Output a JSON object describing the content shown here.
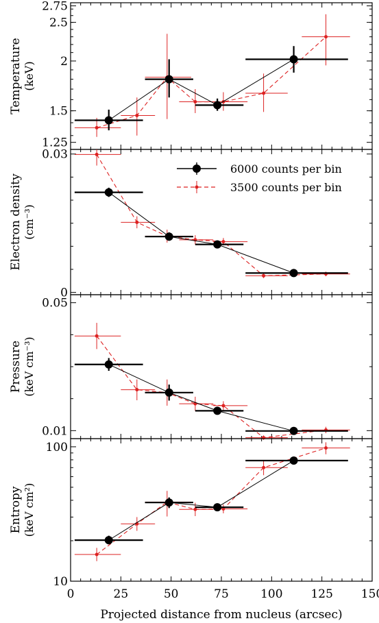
{
  "figure": {
    "xlabel": "Projected distance from nucleus (arcsec)",
    "xticks": [
      0,
      25,
      50,
      75,
      100,
      125,
      150
    ],
    "xlim": [
      0,
      150
    ]
  },
  "chart_data": [
    {
      "type": "scatter",
      "panel": "temperature",
      "ylabel": "Temperature",
      "yunit": "(keV)",
      "yscale": "log",
      "ylim": [
        1.2,
        2.8
      ],
      "yticks": [
        1.25,
        1.5,
        2,
        2.5,
        2.75
      ],
      "yticklabels": [
        "1.25",
        "1.5",
        "2",
        "2.5",
        "2.75"
      ],
      "series": [
        {
          "name": "6000 counts per bin",
          "color": "#000000",
          "marker": "circle",
          "points": [
            {
              "x": 19,
              "y": 1.42,
              "xlo": 2,
              "xhi": 36,
              "ylo": 1.34,
              "yhi": 1.51
            },
            {
              "x": 49,
              "y": 1.8,
              "xlo": 37,
              "xhi": 61,
              "ylo": 1.62,
              "yhi": 2.02
            },
            {
              "x": 73,
              "y": 1.55,
              "xlo": 62,
              "xhi": 86,
              "ylo": 1.5,
              "yhi": 1.61
            },
            {
              "x": 111,
              "y": 2.02,
              "xlo": 87,
              "xhi": 138,
              "ylo": 1.87,
              "yhi": 2.18
            }
          ]
        },
        {
          "name": "3500 counts per bin",
          "color": "#dd2222",
          "marker": "dot",
          "points": [
            {
              "x": 13,
              "y": 1.36,
              "xlo": 2,
              "xhi": 25,
              "ylo": 1.29,
              "yhi": 1.44
            },
            {
              "x": 33,
              "y": 1.46,
              "xlo": 25,
              "xhi": 42,
              "ylo": 1.3,
              "yhi": 1.62
            },
            {
              "x": 48,
              "y": 1.82,
              "xlo": 37,
              "xhi": 60,
              "ylo": 1.43,
              "yhi": 2.34
            },
            {
              "x": 62,
              "y": 1.58,
              "xlo": 54,
              "xhi": 71,
              "ylo": 1.48,
              "yhi": 1.7
            },
            {
              "x": 76,
              "y": 1.58,
              "xlo": 71,
              "xhi": 88,
              "ylo": 1.5,
              "yhi": 1.67
            },
            {
              "x": 96,
              "y": 1.66,
              "xlo": 87,
              "xhi": 108,
              "ylo": 1.49,
              "yhi": 1.86
            },
            {
              "x": 127,
              "y": 2.3,
              "xlo": 115,
              "xhi": 139,
              "ylo": 1.95,
              "yhi": 2.62
            }
          ]
        }
      ]
    },
    {
      "type": "scatter",
      "panel": "electron-density",
      "ylabel": "Electron density",
      "yunit": "(cm⁻³)",
      "yscale": "linear",
      "ylim": [
        -0.0005,
        0.031
      ],
      "yticks": [
        0,
        0.03
      ],
      "yticklabels": [
        "0",
        "0.03"
      ],
      "legend": {
        "position": "top-right",
        "entries": [
          "6000 counts per bin",
          "3500 counts per bin"
        ]
      },
      "series": [
        {
          "name": "6000 counts per bin",
          "color": "#000000",
          "marker": "circle",
          "points": [
            {
              "x": 19,
              "y": 0.0217,
              "xlo": 2,
              "xhi": 36,
              "ylo": 0.0207,
              "yhi": 0.0227
            },
            {
              "x": 49,
              "y": 0.0121,
              "xlo": 37,
              "xhi": 61,
              "ylo": 0.0112,
              "yhi": 0.013
            },
            {
              "x": 73,
              "y": 0.0104,
              "xlo": 62,
              "xhi": 86,
              "ylo": 0.0098,
              "yhi": 0.011
            },
            {
              "x": 111,
              "y": 0.0042,
              "xlo": 87,
              "xhi": 138,
              "ylo": 0.0038,
              "yhi": 0.0046
            }
          ]
        },
        {
          "name": "3500 counts per bin",
          "color": "#dd2222",
          "marker": "dot",
          "points": [
            {
              "x": 13,
              "y": 0.0299,
              "xlo": 2,
              "xhi": 25,
              "ylo": 0.0275,
              "yhi": 0.031
            },
            {
              "x": 33,
              "y": 0.0152,
              "xlo": 25,
              "xhi": 42,
              "ylo": 0.0139,
              "yhi": 0.0165
            },
            {
              "x": 48,
              "y": 0.0122,
              "xlo": 37,
              "xhi": 60,
              "ylo": 0.0108,
              "yhi": 0.0136
            },
            {
              "x": 62,
              "y": 0.0114,
              "xlo": 54,
              "xhi": 71,
              "ylo": 0.0104,
              "yhi": 0.0124
            },
            {
              "x": 76,
              "y": 0.011,
              "xlo": 71,
              "xhi": 88,
              "ylo": 0.0102,
              "yhi": 0.0118
            },
            {
              "x": 96,
              "y": 0.0036,
              "xlo": 87,
              "xhi": 108,
              "ylo": 0.0031,
              "yhi": 0.0041
            },
            {
              "x": 127,
              "y": 0.004,
              "xlo": 115,
              "xhi": 139,
              "ylo": 0.0035,
              "yhi": 0.0045
            }
          ]
        }
      ]
    },
    {
      "type": "scatter",
      "panel": "pressure",
      "ylabel": "Pressure",
      "yunit": "(keV cm⁻³)",
      "yscale": "linear",
      "ylim": [
        0.0075,
        0.0525
      ],
      "yticks": [
        0.01,
        0.05
      ],
      "yticklabels": [
        "0.01",
        "0.05"
      ],
      "series": [
        {
          "name": "6000 counts per bin",
          "color": "#000000",
          "marker": "circle",
          "points": [
            {
              "x": 19,
              "y": 0.0307,
              "xlo": 2,
              "xhi": 36,
              "ylo": 0.0287,
              "yhi": 0.0327
            },
            {
              "x": 49,
              "y": 0.0219,
              "xlo": 37,
              "xhi": 61,
              "ylo": 0.0194,
              "yhi": 0.0244
            },
            {
              "x": 73,
              "y": 0.0162,
              "xlo": 62,
              "xhi": 86,
              "ylo": 0.0152,
              "yhi": 0.0172
            },
            {
              "x": 111,
              "y": 0.0099,
              "xlo": 87,
              "xhi": 138,
              "ylo": 0.0091,
              "yhi": 0.0107
            }
          ]
        },
        {
          "name": "3500 counts per bin",
          "color": "#dd2222",
          "marker": "dot",
          "points": [
            {
              "x": 13,
              "y": 0.0396,
              "xlo": 2,
              "xhi": 25,
              "ylo": 0.0355,
              "yhi": 0.0437
            },
            {
              "x": 33,
              "y": 0.0228,
              "xlo": 25,
              "xhi": 42,
              "ylo": 0.0195,
              "yhi": 0.026
            },
            {
              "x": 48,
              "y": 0.0219,
              "xlo": 37,
              "xhi": 60,
              "ylo": 0.0178,
              "yhi": 0.026
            },
            {
              "x": 62,
              "y": 0.0184,
              "xlo": 54,
              "xhi": 71,
              "ylo": 0.0162,
              "yhi": 0.0206
            },
            {
              "x": 76,
              "y": 0.0178,
              "xlo": 71,
              "xhi": 88,
              "ylo": 0.0164,
              "yhi": 0.0192
            },
            {
              "x": 96,
              "y": 0.0078,
              "xlo": 87,
              "xhi": 108,
              "ylo": 0.0071,
              "yhi": 0.0085
            },
            {
              "x": 127,
              "y": 0.0102,
              "xlo": 115,
              "xhi": 139,
              "ylo": 0.0092,
              "yhi": 0.0112
            }
          ]
        }
      ]
    },
    {
      "type": "scatter",
      "panel": "entropy",
      "ylabel": "Entropy",
      "yunit": "(keV cm²)",
      "yscale": "log",
      "ylim": [
        10,
        115
      ],
      "yticks": [
        10,
        100
      ],
      "yticklabels": [
        "10",
        "100"
      ],
      "series": [
        {
          "name": "6000 counts per bin",
          "color": "#000000",
          "marker": "circle",
          "points": [
            {
              "x": 19,
              "y": 20.2,
              "xlo": 2,
              "xhi": 36,
              "ylo": 18.8,
              "yhi": 21.8
            },
            {
              "x": 49,
              "y": 38.5,
              "xlo": 37,
              "xhi": 61,
              "ylo": 35,
              "yhi": 42
            },
            {
              "x": 73,
              "y": 35.5,
              "xlo": 62,
              "xhi": 86,
              "ylo": 33.5,
              "yhi": 37.5
            },
            {
              "x": 111,
              "y": 79,
              "xlo": 87,
              "xhi": 138,
              "ylo": 74,
              "yhi": 84
            }
          ]
        },
        {
          "name": "3500 counts per bin",
          "color": "#dd2222",
          "marker": "dot",
          "points": [
            {
              "x": 13,
              "y": 15.8,
              "xlo": 2,
              "xhi": 25,
              "ylo": 14.1,
              "yhi": 17.7
            },
            {
              "x": 33,
              "y": 26.7,
              "xlo": 25,
              "xhi": 42,
              "ylo": 23.7,
              "yhi": 30
            },
            {
              "x": 48,
              "y": 38.8,
              "xlo": 37,
              "xhi": 60,
              "ylo": 30.3,
              "yhi": 47
            },
            {
              "x": 62,
              "y": 34.2,
              "xlo": 54,
              "xhi": 71,
              "ylo": 30.5,
              "yhi": 38.3
            },
            {
              "x": 76,
              "y": 34.5,
              "xlo": 71,
              "xhi": 88,
              "ylo": 32,
              "yhi": 37.2
            },
            {
              "x": 96,
              "y": 70,
              "xlo": 87,
              "xhi": 108,
              "ylo": 61.5,
              "yhi": 79.5
            },
            {
              "x": 127,
              "y": 98,
              "xlo": 115,
              "xhi": 139,
              "ylo": 88,
              "yhi": 108
            }
          ]
        }
      ]
    }
  ]
}
